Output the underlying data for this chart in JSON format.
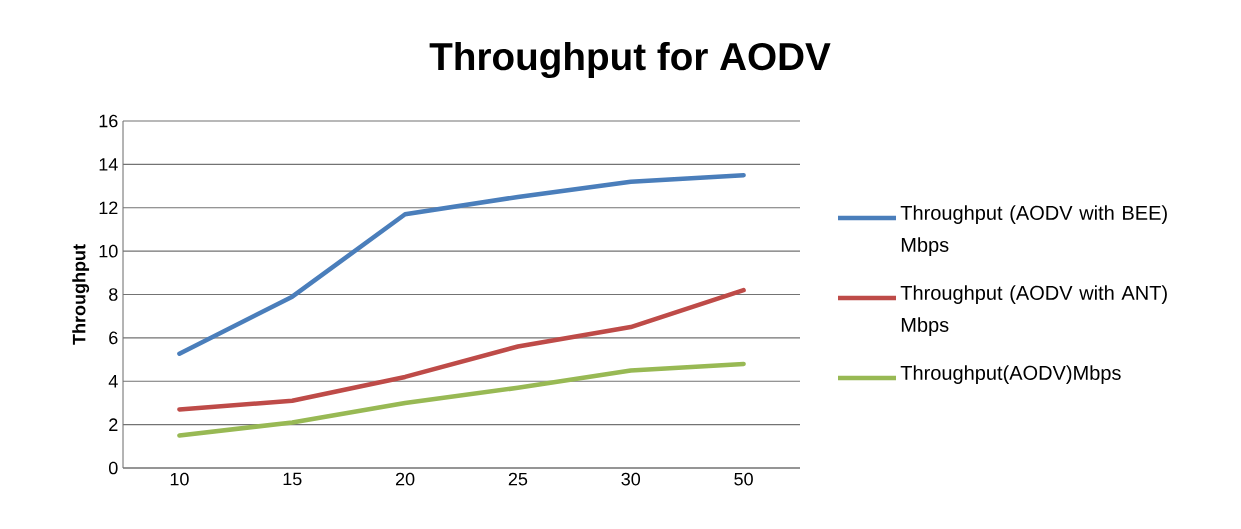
{
  "chart_data": {
    "type": "line",
    "title": "Throughput for AODV",
    "ylabel": "Throughput",
    "categories": [
      "10",
      "15",
      "20",
      "25",
      "30",
      "50"
    ],
    "series": [
      {
        "name": "Throughput (AODV with BEE) Mbps",
        "color": "#4a7ebb",
        "values": [
          5.27,
          7.9,
          11.7,
          12.5,
          13.2,
          13.5
        ]
      },
      {
        "name": "Throughput (AODV with ANT) Mbps",
        "color": "#be4b48",
        "values": [
          2.7,
          3.1,
          4.2,
          5.6,
          6.5,
          8.2
        ]
      },
      {
        "name": "Throughput(AODV)Mbps",
        "color": "#98b954",
        "values": [
          1.5,
          2.1,
          3.0,
          3.7,
          4.5,
          4.8
        ]
      }
    ],
    "ylim": [
      0,
      16
    ],
    "yticks": [
      0,
      2,
      4,
      6,
      8,
      10,
      12,
      14,
      16
    ],
    "grid": "y",
    "legend": "right",
    "marker": "none",
    "line_style": "solid"
  }
}
